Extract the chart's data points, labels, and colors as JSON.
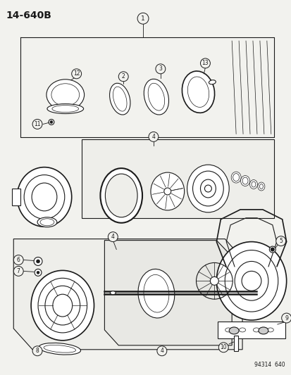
{
  "fig_code": "14-640B",
  "catalog_num": "94314  640",
  "bg_color": "#f2f2ee",
  "line_color": "#1a1a1a",
  "white": "#ffffff"
}
